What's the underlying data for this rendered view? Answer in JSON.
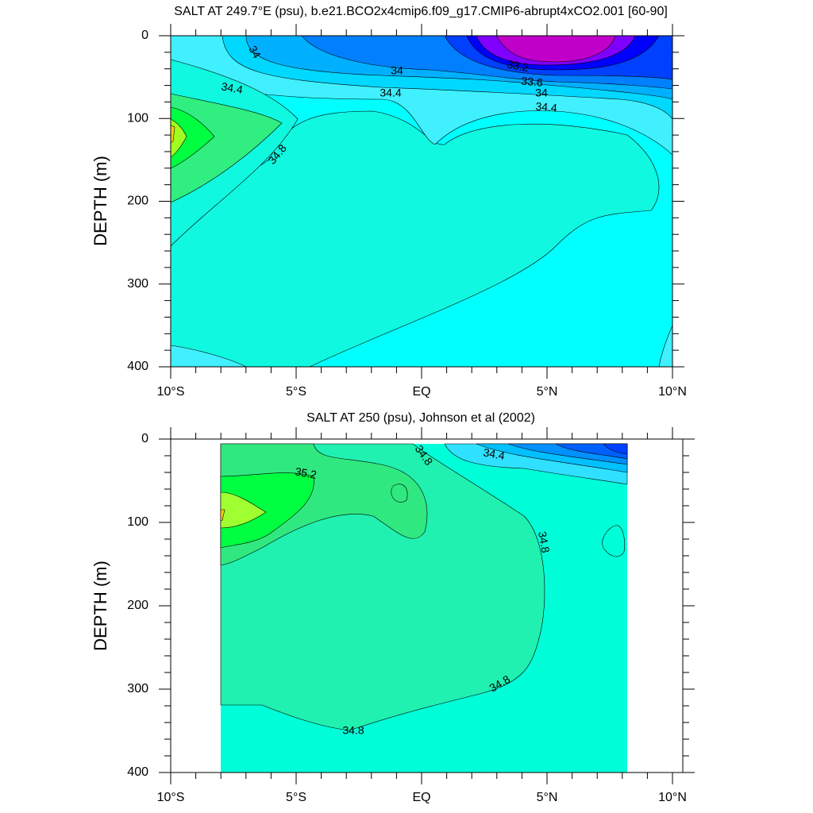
{
  "chart_data": [
    {
      "type": "contour",
      "title": "SALT AT 249.7°E (psu), b.e21.BCO2x4cmip6.f09_g17.CMIP6-abrupt4xCO2.001 [60-90]",
      "y_label": "DEPTH (m)",
      "xlim": [
        -10,
        10
      ],
      "xticks": [
        {
          "value": -10,
          "label": "10°S"
        },
        {
          "value": -5,
          "label": "5°S"
        },
        {
          "value": 0,
          "label": "EQ"
        },
        {
          "value": 5,
          "label": "5°N"
        },
        {
          "value": 10,
          "label": "10°N"
        }
      ],
      "ylim": [
        0,
        400
      ],
      "yticks": [
        0,
        100,
        200,
        300,
        400
      ],
      "y_reversed": true,
      "levels": [
        33,
        33.2,
        33.4,
        33.6,
        33.8,
        34,
        34.2,
        34.4,
        34.6,
        34.8,
        35,
        35.2,
        35.4,
        35.6
      ],
      "colors": [
        "#c000c8",
        "#8000ff",
        "#0000ff",
        "#0040ff",
        "#0080ff",
        "#00b0ff",
        "#00d8ff",
        "#40f0ff",
        "#00ffff",
        "#10f8e0",
        "#30ee80",
        "#00ff40",
        "#a0ff20",
        "#ffd000"
      ],
      "contour_labels": [
        34,
        34,
        34.4,
        34.4,
        33.2,
        33.6,
        34,
        34.4,
        34.8
      ]
    },
    {
      "type": "contour",
      "title": "SALT AT 250 (psu), Johnson et al (2002)",
      "y_label": "DEPTH (m)",
      "xlim": [
        -10,
        10
      ],
      "xticks": [
        {
          "value": -10,
          "label": "10°S"
        },
        {
          "value": -5,
          "label": "5°S"
        },
        {
          "value": 0,
          "label": "EQ"
        },
        {
          "value": 5,
          "label": "5°N"
        },
        {
          "value": 10,
          "label": "10°N"
        }
      ],
      "ylim": [
        0,
        400
      ],
      "yticks": [
        0,
        100,
        200,
        300,
        400
      ],
      "y_reversed": true,
      "levels": [
        33,
        33.2,
        33.4,
        33.6,
        33.8,
        34,
        34.2,
        34.4,
        34.6,
        34.8,
        35,
        35.2,
        35.4,
        35.6
      ],
      "colors": [
        "#c000c8",
        "#8000ff",
        "#0000ff",
        "#0040ff",
        "#0060ff",
        "#0090ff",
        "#00c0ff",
        "#30e0ff",
        "#00ffd8",
        "#20f0b0",
        "#30e880",
        "#00ff40",
        "#a0ff30",
        "#ffd000"
      ],
      "contour_labels": [
        35.2,
        34.8,
        34.4,
        34.8,
        34.8,
        34.8
      ]
    }
  ]
}
